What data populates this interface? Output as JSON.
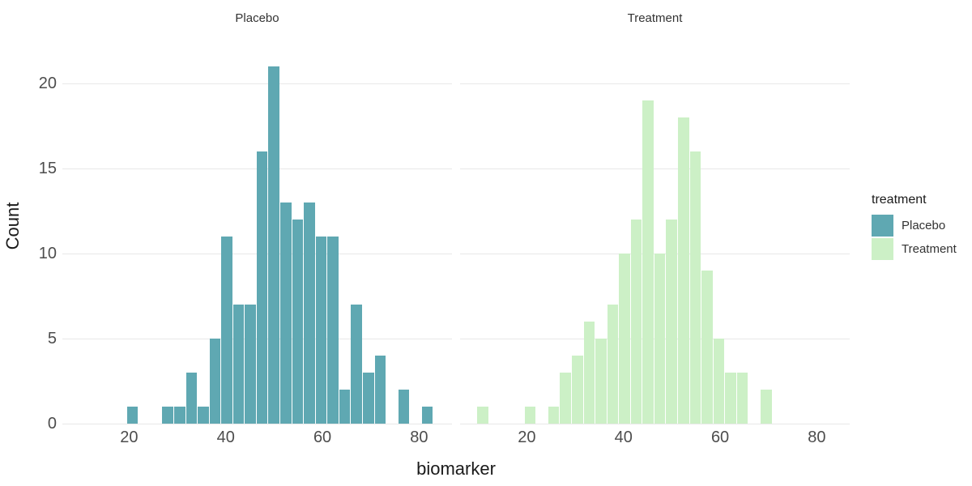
{
  "chart_data": {
    "type": "bar",
    "subtype": "faceted-histogram",
    "xlabel": "biomarker",
    "ylabel": "Count",
    "x_ticks": [
      20,
      40,
      60,
      80
    ],
    "y_ticks": [
      0,
      5,
      10,
      15,
      20
    ],
    "x_domain": [
      6.2,
      86.8
    ],
    "y_domain": [
      0,
      21.95
    ],
    "bin_width": 2.44,
    "grid": "horizontal-only",
    "facets": [
      {
        "label": "Placebo",
        "color": "#5FA8B2",
        "bins": [
          {
            "x_left": 19.56,
            "count": 1
          },
          {
            "x_left": 26.88,
            "count": 1
          },
          {
            "x_left": 29.32,
            "count": 1
          },
          {
            "x_left": 31.76,
            "count": 3
          },
          {
            "x_left": 34.2,
            "count": 1
          },
          {
            "x_left": 36.64,
            "count": 5
          },
          {
            "x_left": 39.08,
            "count": 11
          },
          {
            "x_left": 41.52,
            "count": 7
          },
          {
            "x_left": 43.96,
            "count": 7
          },
          {
            "x_left": 46.4,
            "count": 16
          },
          {
            "x_left": 48.84,
            "count": 21
          },
          {
            "x_left": 51.28,
            "count": 13
          },
          {
            "x_left": 53.72,
            "count": 12
          },
          {
            "x_left": 56.16,
            "count": 13
          },
          {
            "x_left": 58.6,
            "count": 11
          },
          {
            "x_left": 61.04,
            "count": 11
          },
          {
            "x_left": 63.48,
            "count": 2
          },
          {
            "x_left": 65.92,
            "count": 7
          },
          {
            "x_left": 68.36,
            "count": 3
          },
          {
            "x_left": 70.8,
            "count": 4
          },
          {
            "x_left": 75.68,
            "count": 2
          },
          {
            "x_left": 80.56,
            "count": 1
          }
        ]
      },
      {
        "label": "Treatment",
        "color": "#CCF0C6",
        "bins": [
          {
            "x_left": 9.8,
            "count": 1
          },
          {
            "x_left": 19.56,
            "count": 1
          },
          {
            "x_left": 24.44,
            "count": 1
          },
          {
            "x_left": 26.88,
            "count": 3
          },
          {
            "x_left": 29.32,
            "count": 4
          },
          {
            "x_left": 31.76,
            "count": 6
          },
          {
            "x_left": 34.2,
            "count": 5
          },
          {
            "x_left": 36.64,
            "count": 7
          },
          {
            "x_left": 39.08,
            "count": 10
          },
          {
            "x_left": 41.52,
            "count": 12
          },
          {
            "x_left": 43.96,
            "count": 19
          },
          {
            "x_left": 46.4,
            "count": 10
          },
          {
            "x_left": 48.84,
            "count": 12
          },
          {
            "x_left": 51.28,
            "count": 18
          },
          {
            "x_left": 53.72,
            "count": 16
          },
          {
            "x_left": 56.16,
            "count": 9
          },
          {
            "x_left": 58.6,
            "count": 5
          },
          {
            "x_left": 61.04,
            "count": 3
          },
          {
            "x_left": 63.48,
            "count": 3
          },
          {
            "x_left": 68.36,
            "count": 2
          }
        ]
      }
    ]
  },
  "legend": {
    "title": "treatment",
    "items": [
      {
        "label": "Placebo",
        "color": "#5FA8B2"
      },
      {
        "label": "Treatment",
        "color": "#CCF0C6"
      }
    ]
  },
  "colors": {
    "background": "#ffffff",
    "gridline": "#e8e8e8",
    "tick_label": "#4d4d4d",
    "axis_title": "#1a1a1a",
    "strip_label": "#333333"
  }
}
